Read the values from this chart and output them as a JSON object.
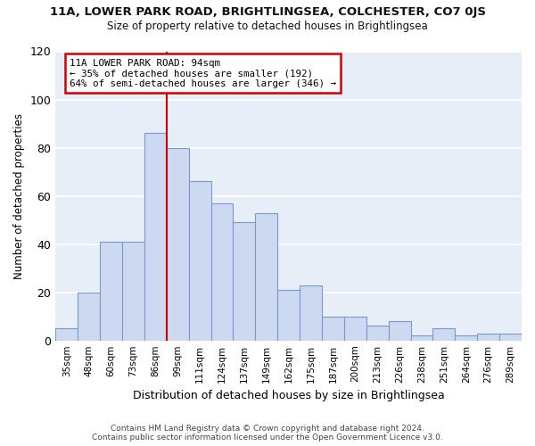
{
  "title1": "11A, LOWER PARK ROAD, BRIGHTLINGSEA, COLCHESTER, CO7 0JS",
  "title2": "Size of property relative to detached houses in Brightlingsea",
  "xlabel": "Distribution of detached houses by size in Brightlingsea",
  "ylabel": "Number of detached properties",
  "categories": [
    "35sqm",
    "48sqm",
    "60sqm",
    "73sqm",
    "86sqm",
    "99sqm",
    "111sqm",
    "124sqm",
    "137sqm",
    "149sqm",
    "162sqm",
    "175sqm",
    "187sqm",
    "200sqm",
    "213sqm",
    "226sqm",
    "238sqm",
    "251sqm",
    "264sqm",
    "276sqm",
    "289sqm"
  ],
  "values": [
    5,
    20,
    41,
    41,
    86,
    80,
    66,
    57,
    49,
    53,
    21,
    23,
    10,
    10,
    6,
    8,
    2,
    5,
    2,
    3,
    3
  ],
  "bar_color": "#ccd9f0",
  "bar_edge_color": "#7799cc",
  "subject_line_idx": 5,
  "subject_label": "11A LOWER PARK ROAD: 94sqm",
  "annotation_line1": "← 35% of detached houses are smaller (192)",
  "annotation_line2": "64% of semi-detached houses are larger (346) →",
  "annotation_box_color": "#ffffff",
  "annotation_box_edge": "#cc0000",
  "vline_color": "#cc0000",
  "fig_background_color": "#ffffff",
  "plot_background_color": "#e8eef8",
  "grid_color": "#ffffff",
  "footnote1": "Contains HM Land Registry data © Crown copyright and database right 2024.",
  "footnote2": "Contains public sector information licensed under the Open Government Licence v3.0.",
  "ylim": [
    0,
    120
  ],
  "yticks": [
    0,
    20,
    40,
    60,
    80,
    100,
    120
  ]
}
